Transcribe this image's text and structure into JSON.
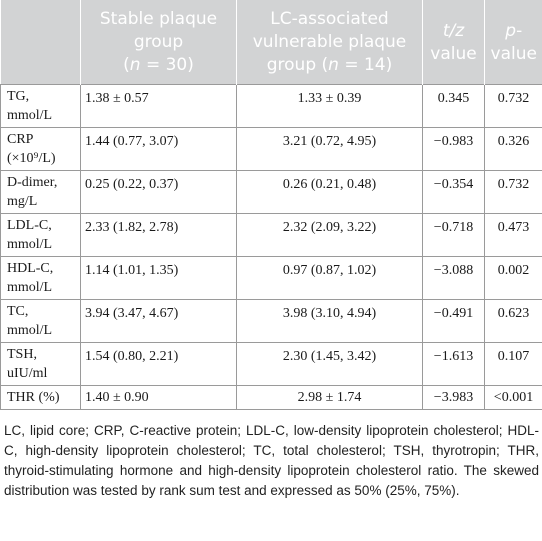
{
  "table": {
    "headers": [
      {
        "lines": [
          "",
          "",
          ""
        ]
      },
      {
        "lines": [
          "Stable plaque",
          "group",
          "(n = 30)"
        ]
      },
      {
        "lines": [
          "LC-associated",
          "vulnerable plaque",
          "group (n = 14)"
        ]
      },
      {
        "lines": [
          "t/z",
          "value"
        ]
      },
      {
        "lines": [
          "p-",
          "value"
        ]
      }
    ],
    "rows": [
      {
        "label": [
          "TG,",
          "mmol/L"
        ],
        "stable": "1.38 ± 0.57",
        "lc": "1.33 ± 0.39",
        "tz": "0.345",
        "p": "0.732"
      },
      {
        "label": [
          "CRP",
          "(×10⁹/L)"
        ],
        "stable": "1.44 (0.77, 3.07)",
        "lc": "3.21 (0.72, 4.95)",
        "tz": "−0.983",
        "p": "0.326"
      },
      {
        "label": [
          "D-dimer,",
          "mg/L"
        ],
        "stable": "0.25 (0.22, 0.37)",
        "lc": "0.26 (0.21, 0.48)",
        "tz": "−0.354",
        "p": "0.732"
      },
      {
        "label": [
          "LDL-C,",
          "mmol/L"
        ],
        "stable": "2.33 (1.82, 2.78)",
        "lc": "2.32 (2.09, 3.22)",
        "tz": "−0.718",
        "p": "0.473"
      },
      {
        "label": [
          "HDL-C,",
          "mmol/L"
        ],
        "stable": "1.14 (1.01, 1.35)",
        "lc": "0.97 (0.87, 1.02)",
        "tz": "−3.088",
        "p": "0.002"
      },
      {
        "label": [
          "TC,",
          "mmol/L"
        ],
        "stable": "3.94 (3.47, 4.67)",
        "lc": "3.98 (3.10, 4.94)",
        "tz": "−0.491",
        "p": "0.623"
      },
      {
        "label": [
          "TSH,",
          "uIU/ml"
        ],
        "stable": "1.54 (0.80, 2.21)",
        "lc": "2.30 (1.45, 3.42)",
        "tz": "−1.613",
        "p": "0.107"
      },
      {
        "label": [
          "THR (%)",
          ""
        ],
        "stable": "1.40 ± 0.90",
        "lc": "2.98 ± 1.74",
        "tz": "−3.983",
        "p": "<0.001"
      }
    ]
  },
  "footnote": "LC, lipid core; CRP, C-reactive protein; LDL-C, low-density lipoprotein cholesterol; HDL-C, high-density lipoprotein cholesterol; TC, total cholesterol; TSH, thyrotropin; THR, thyroid-stimulating hormone and high-density lipoprotein cholesterol ratio. The skewed distribution was tested by rank sum test and expressed as 50% (25%, 75%).",
  "colors": {
    "header_bg": "#d2d3d4",
    "header_text": "#ffffff",
    "grid": "#9a9a9a"
  }
}
